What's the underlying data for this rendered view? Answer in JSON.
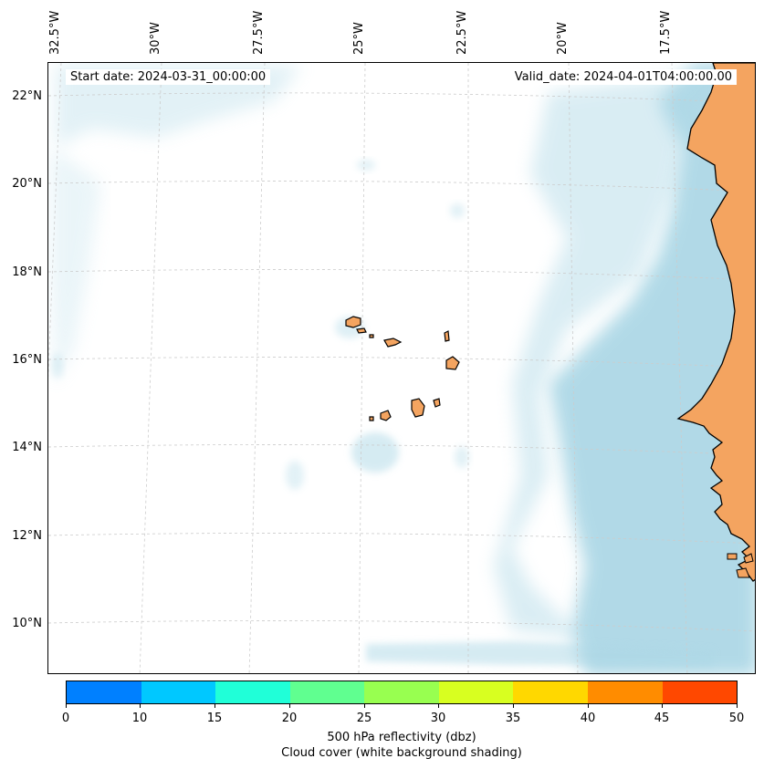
{
  "map": {
    "start_date_text": "Start date: 2024-03-31_00:00:00",
    "valid_date_text": "Valid_date: 2024-04-01T04:00:00.00",
    "lon_labels": [
      "32.5°W",
      "30°W",
      "27.5°W",
      "25°W",
      "22.5°W",
      "20°W",
      "17.5°W"
    ],
    "lat_labels": [
      "22°N",
      "20°N",
      "18°N",
      "16°N",
      "14°N",
      "12°N",
      "10°N"
    ],
    "colors": {
      "land": "#f4a460",
      "cloud": "#add8e6",
      "gridline": "#cccccc",
      "coastline": "#000000"
    }
  },
  "colorbar": {
    "ticks": [
      "0",
      "10",
      "15",
      "20",
      "25",
      "30",
      "35",
      "40",
      "45",
      "50"
    ],
    "colors": [
      "#0080ff",
      "#00c8ff",
      "#20ffd8",
      "#60ff90",
      "#98ff50",
      "#d8ff20",
      "#ffd800",
      "#ff8c00",
      "#ff4800"
    ],
    "label_line1": "500 hPa reflectivity (dbz)",
    "label_line2": "Cloud cover (white background shading)"
  }
}
